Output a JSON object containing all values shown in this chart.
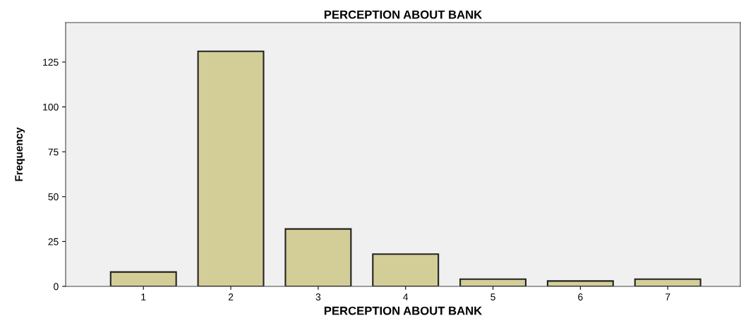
{
  "chart_data": {
    "type": "bar",
    "title": "PERCEPTION ABOUT BANK",
    "xlabel": "PERCEPTION ABOUT BANK",
    "ylabel": "Frequency",
    "categories": [
      "1",
      "2",
      "3",
      "4",
      "5",
      "6",
      "7"
    ],
    "values": [
      8,
      131,
      32,
      18,
      4,
      3,
      4
    ],
    "color": "#d3ce97",
    "ylim": [
      0,
      147
    ],
    "yticks": [
      0,
      25,
      50,
      75,
      100,
      125
    ],
    "grid": false,
    "legend": false
  }
}
